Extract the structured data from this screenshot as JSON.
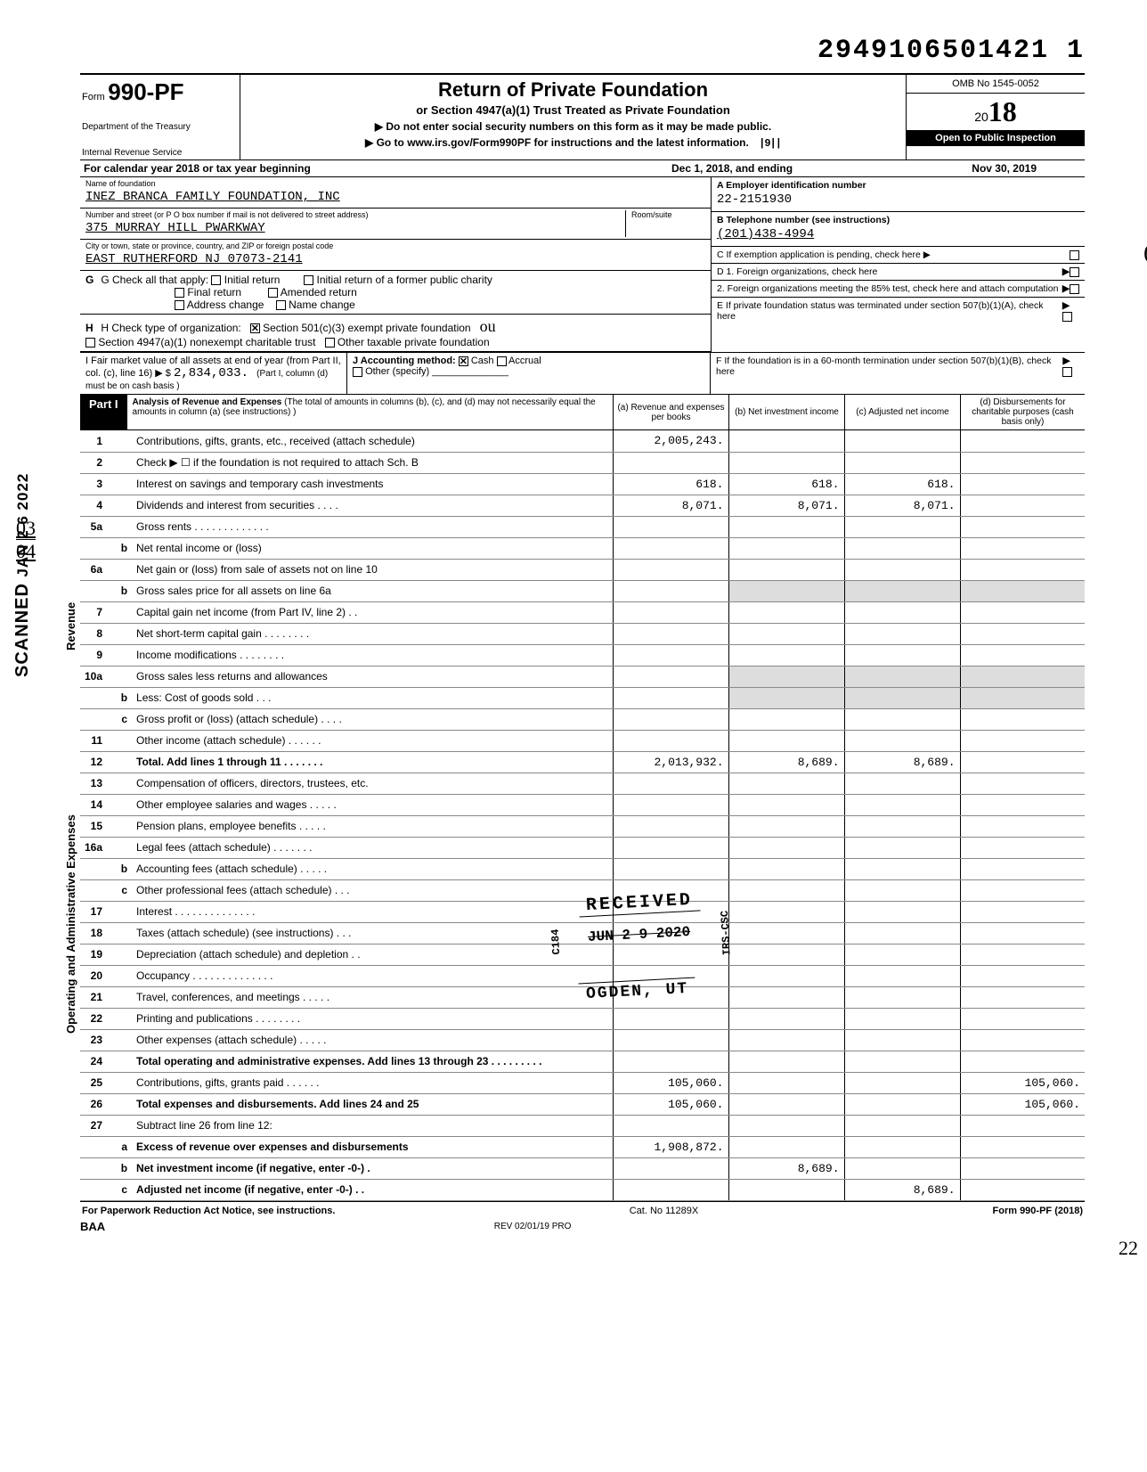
{
  "doc_id": "2949106501421 1",
  "form": {
    "prefix": "Form",
    "number": "990-PF",
    "dept1": "Department of the Treasury",
    "dept2": "Internal Revenue Service",
    "title": "Return of Private Foundation",
    "subtitle": "or Section 4947(a)(1) Trust Treated as Private Foundation",
    "note1": "▶ Do not enter social security numbers on this form as it may be made public.",
    "note2": "▶ Go to www.irs.gov/Form990PF for instructions and the latest information.",
    "omb": "OMB No 1545-0052",
    "year_prefix": "20",
    "year": "18",
    "inspect": "Open to Public Inspection",
    "barcode": "|9||"
  },
  "calendar": {
    "prefix": "For calendar year 2018 or tax year beginning",
    "begin": "Dec  1, 2018, and ending",
    "end": "Nov 30, 2019"
  },
  "entity": {
    "name_label": "Name of foundation",
    "name": "INEZ BRANCA FAMILY FOUNDATION, INC",
    "addr_label": "Number and street (or P O  box number if mail is not delivered to street address)",
    "room_label": "Room/suite",
    "addr": "375 MURRAY HILL PWARKWAY",
    "city_label": "City or town, state or province, country, and ZIP or foreign postal code",
    "city": "EAST RUTHERFORD NJ 07073-2141",
    "ein_label": "A  Employer identification number",
    "ein": "22-2151930",
    "phone_label": "B  Telephone number (see instructions)",
    "phone": "(201)438-4994",
    "c_label": "C  If exemption application is pending, check here ▶",
    "d1_label": "D  1. Foreign organizations, check here",
    "d2_label": "2. Foreign organizations meeting the 85% test, check here and attach computation",
    "e_label": "E  If private foundation status was terminated under section 507(b)(1)(A), check here",
    "f_label": "F  If the foundation is in a 60-month termination under section 507(b)(1)(B), check here"
  },
  "g": {
    "label": "G   Check all that apply:",
    "opts": [
      "Initial return",
      "Final return",
      "Address change",
      "Initial return of a former public charity",
      "Amended return",
      "Name change"
    ]
  },
  "h": {
    "label": "H   Check type of organization:",
    "opt1": "Section 501(c)(3) exempt private foundation",
    "opt2": "Section 4947(a)(1) nonexempt charitable trust",
    "opt3": "Other taxable private foundation",
    "hand": "ou"
  },
  "i": {
    "label": "I    Fair market value of all assets at end of year (from Part II, col. (c), line 16) ▶ $",
    "value": "2,834,033.",
    "note": "(Part I, column (d) must be on cash basis )"
  },
  "j": {
    "label": "J   Accounting method:",
    "cash": "Cash",
    "accrual": "Accrual",
    "other": "Other (specify)"
  },
  "part1": {
    "tag": "Part I",
    "desc": "Analysis of Revenue and Expenses (The total of amounts in columns (b), (c), and (d) may not necessarily equal the amounts in column (a) (see instructions) )",
    "cols": {
      "a": "(a) Revenue and expenses per books",
      "b": "(b) Net investment income",
      "c": "(c) Adjusted net income",
      "d": "(d) Disbursements for charitable purposes (cash basis only)"
    }
  },
  "side_labels": {
    "revenue": "Revenue",
    "expenses": "Operating and Administrative Expenses"
  },
  "rows": [
    {
      "n": "1",
      "d": "Contributions, gifts, grants, etc., received (attach schedule)",
      "a": "2,005,243."
    },
    {
      "n": "2",
      "d": "Check ▶ ☐ if the foundation is not required to attach Sch. B"
    },
    {
      "n": "3",
      "d": "Interest on savings and temporary cash investments",
      "a": "618.",
      "b": "618.",
      "c": "618."
    },
    {
      "n": "4",
      "d": "Dividends and interest from securities   .   .   .   .",
      "a": "8,071.",
      "b": "8,071.",
      "c": "8,071."
    },
    {
      "n": "5a",
      "d": "Gross rents  .   .   .   .   .   .   .   .   .   .   .   .   ."
    },
    {
      "n": "b",
      "sub": true,
      "d": "Net rental income or (loss)"
    },
    {
      "n": "6a",
      "d": "Net gain or (loss) from sale of assets not on line 10"
    },
    {
      "n": "b",
      "sub": true,
      "d": "Gross sales price for all assets on line 6a",
      "shade_bcd": true
    },
    {
      "n": "7",
      "d": "Capital gain net income (from Part IV, line 2)  .   ."
    },
    {
      "n": "8",
      "d": "Net short-term capital gain  .   .   .   .   .   .   .   ."
    },
    {
      "n": "9",
      "d": "Income modifications      .   .   .   .   .   .   .   ."
    },
    {
      "n": "10a",
      "d": "Gross sales less returns and allowances",
      "shade_bcd": true
    },
    {
      "n": "b",
      "sub": true,
      "d": "Less: Cost of goods sold    .   .   .",
      "shade_bcd": true
    },
    {
      "n": "c",
      "sub": true,
      "d": "Gross profit or (loss) (attach schedule)   .   .   .   ."
    },
    {
      "n": "11",
      "d": "Other income (attach schedule)   .   .   .   .   .   ."
    },
    {
      "n": "12",
      "d": "Total. Add lines 1 through 11   .   .   .   .   .   .   .",
      "a": "2,013,932.",
      "b": "8,689.",
      "c": "8,689.",
      "bold": true
    },
    {
      "n": "13",
      "d": "Compensation of officers, directors, trustees, etc."
    },
    {
      "n": "14",
      "d": "Other employee salaries and wages .   .   .   .   ."
    },
    {
      "n": "15",
      "d": "Pension plans, employee benefits    .   .   .   .   ."
    },
    {
      "n": "16a",
      "d": "Legal fees (attach schedule)    .   .   .   .   .   .   ."
    },
    {
      "n": "b",
      "sub": true,
      "d": "Accounting fees (attach schedule)   .   .   .   .   ."
    },
    {
      "n": "c",
      "sub": true,
      "d": "Other professional fees (attach schedule)  .   .   ."
    },
    {
      "n": "17",
      "d": "Interest   .   .   .   .   .   .   .   .   .   .   .   .   .   ."
    },
    {
      "n": "18",
      "d": "Taxes (attach schedule) (see instructions)  .   .   ."
    },
    {
      "n": "19",
      "d": "Depreciation (attach schedule) and depletion .   ."
    },
    {
      "n": "20",
      "d": "Occupancy .   .   .   .   .   .   .   .   .   .   .   .   .   ."
    },
    {
      "n": "21",
      "d": "Travel, conferences, and meetings   .   .   .   .   ."
    },
    {
      "n": "22",
      "d": "Printing and publications    .   .   .   .   .   .   .   ."
    },
    {
      "n": "23",
      "d": "Other expenses (attach schedule)   .   .   .   .   ."
    },
    {
      "n": "24",
      "d": "Total operating and administrative expenses. Add lines 13 through 23 .   .   .   .   .   .   .   .   .",
      "bold": true
    },
    {
      "n": "25",
      "d": "Contributions, gifts, grants paid   .   .   .   .   .   .",
      "a": "105,060.",
      "dd": "105,060."
    },
    {
      "n": "26",
      "d": "Total expenses and disbursements. Add lines 24 and 25",
      "a": "105,060.",
      "dd": "105,060.",
      "bold": true
    },
    {
      "n": "27",
      "d": "Subtract line 26 from line 12:"
    },
    {
      "n": "a",
      "sub": true,
      "d": "Excess of revenue over expenses and disbursements",
      "a": "1,908,872.",
      "bold": true
    },
    {
      "n": "b",
      "sub": true,
      "d": "Net investment income (if negative, enter -0-)   .",
      "b": "8,689.",
      "bold": true
    },
    {
      "n": "c",
      "sub": true,
      "d": "Adjusted net income (if negative, enter -0-)  .   .",
      "c": "8,689.",
      "bold": true
    }
  ],
  "footer": {
    "left": "For Paperwork Reduction Act Notice, see instructions.",
    "mid": "Cat. No  11289X",
    "right": "Form 990-PF (2018)",
    "baa": "BAA",
    "rev": "REV 02/01/19 PRO"
  },
  "margin": {
    "frac_top": "03",
    "frac_bot": "04",
    "scanned": "SCANNED",
    "scan_date": "JAN 2 6 2022",
    "hand_6": "6",
    "hand_22": "22"
  },
  "stamp": {
    "received": "RECEIVED",
    "date": "JUN 2 9 2020",
    "loc": "OGDEN, UT",
    "side": "IRS-CSC",
    "side2": "C184"
  }
}
